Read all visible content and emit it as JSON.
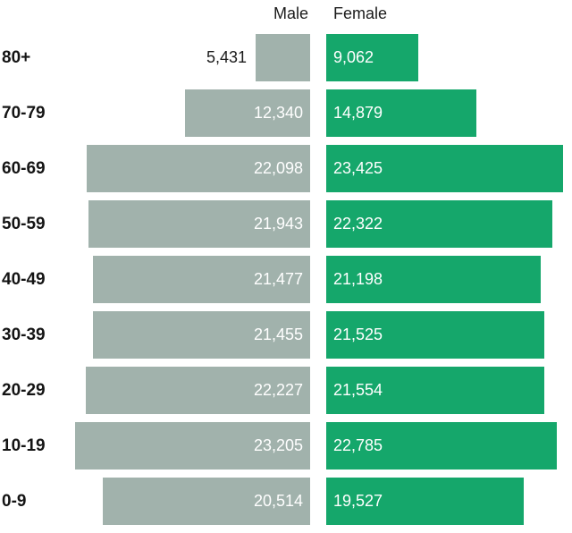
{
  "chart_data": {
    "type": "bar",
    "subtype": "population-pyramid",
    "orientation": "horizontal",
    "title": "",
    "xlabel": "",
    "ylabel": "",
    "categories": [
      "80+",
      "70-79",
      "60-69",
      "50-59",
      "40-49",
      "30-39",
      "20-29",
      "10-19",
      "0-9"
    ],
    "series": [
      {
        "name": "Male",
        "color": "#a1b2ac",
        "values": [
          5431,
          12340,
          22098,
          21943,
          21477,
          21455,
          22227,
          23205,
          20514
        ],
        "labels": [
          "5,431",
          "12,340",
          "22,098",
          "21,943",
          "21,477",
          "21,455",
          "22,227",
          "23,205",
          "20,514"
        ]
      },
      {
        "name": "Female",
        "color": "#15a76b",
        "values": [
          9062,
          14879,
          23425,
          22322,
          21198,
          21525,
          21554,
          22785,
          19527
        ],
        "labels": [
          "9,062",
          "14,879",
          "23,425",
          "22,322",
          "21,198",
          "21,525",
          "21,554",
          "22,785",
          "19,527"
        ]
      }
    ],
    "value_axis_max": 23450,
    "grid": false,
    "legend_position": "top-as-column-headers",
    "label_color_inside_bar": "#ffffff",
    "label_color_outside_bar": "#1b1b1b",
    "category_label_color": "#141414"
  }
}
